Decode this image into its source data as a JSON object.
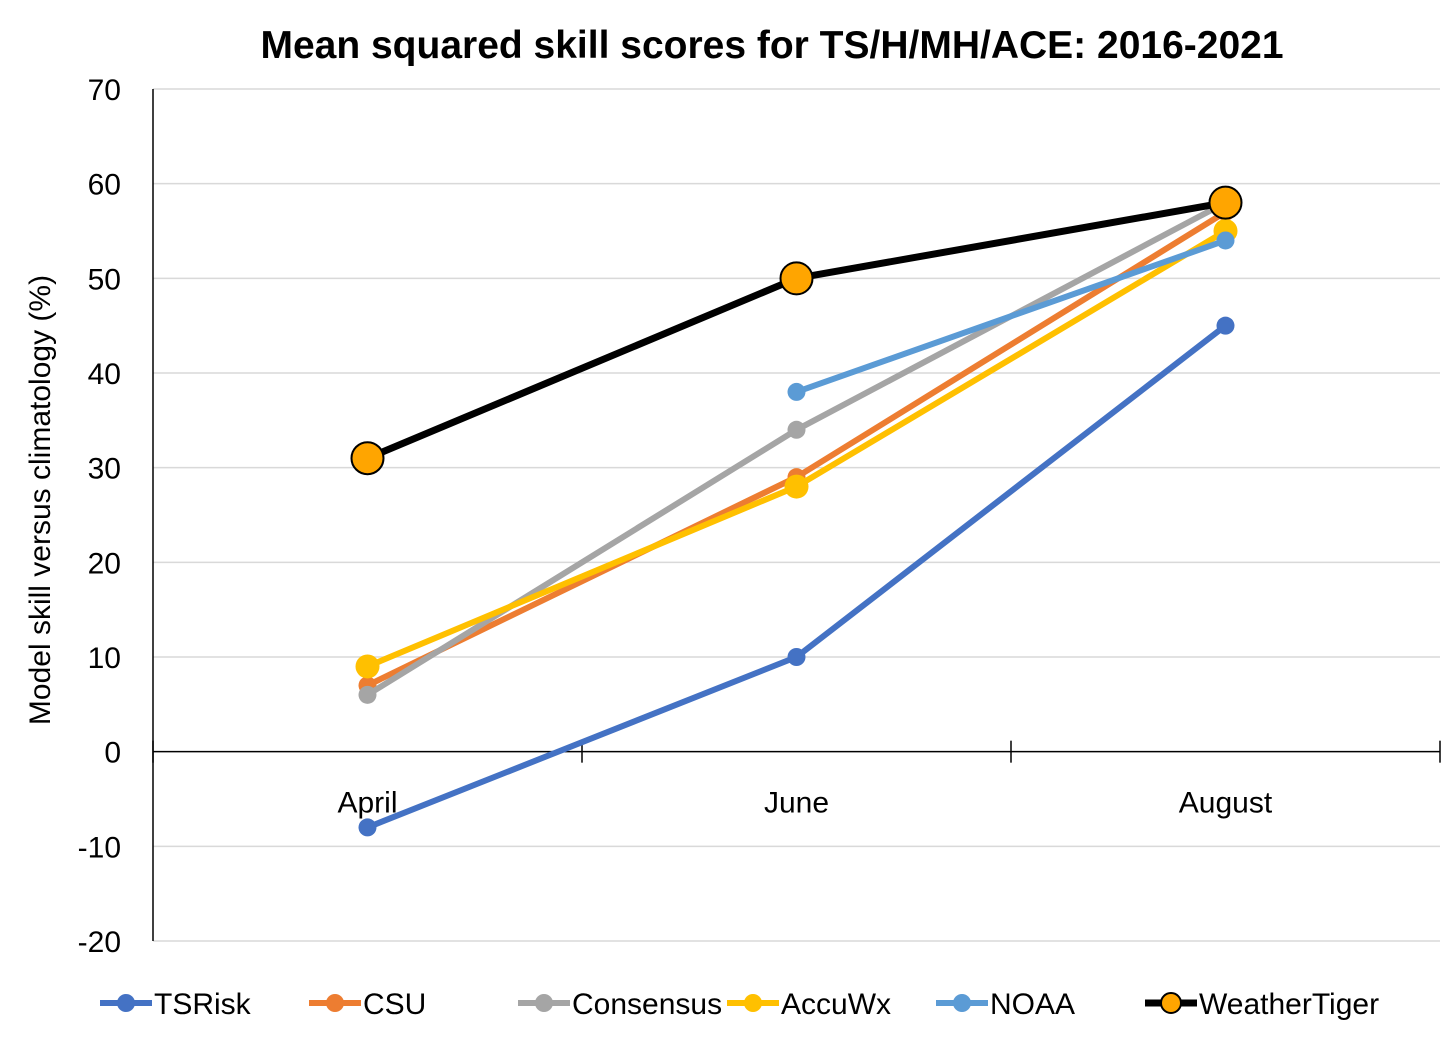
{
  "chart_data": {
    "type": "line",
    "title": "Mean squared skill scores for TS/H/MH/ACE: 2016-2021",
    "xlabel": "",
    "ylabel": "Model skill versus climatology (%)",
    "categories": [
      "April",
      "June",
      "August"
    ],
    "ylim": [
      -20,
      70
    ],
    "yticks": [
      -20,
      -10,
      0,
      10,
      20,
      30,
      40,
      50,
      60,
      70
    ],
    "grid": true,
    "legend_position": "bottom",
    "series": [
      {
        "name": "TSRisk",
        "values": [
          -8,
          10,
          45
        ],
        "color": "#4472c4",
        "marker": "circle"
      },
      {
        "name": "CSU",
        "values": [
          7,
          29,
          57
        ],
        "color": "#ed7d31",
        "marker": "circle"
      },
      {
        "name": "Consensus",
        "values": [
          6,
          34,
          58
        ],
        "color": "#a5a5a5",
        "marker": "circle"
      },
      {
        "name": "AccuWx",
        "values": [
          9,
          28,
          55
        ],
        "color": "#ffc000",
        "marker": "circle"
      },
      {
        "name": "NOAA",
        "values": [
          null,
          38,
          54
        ],
        "color": "#5b9bd5",
        "marker": "circle"
      },
      {
        "name": "WeatherTiger",
        "values": [
          31,
          50,
          58
        ],
        "color": "#000000",
        "marker": "circle",
        "marker_fill": "#ffa500",
        "marker_stroke": "#000000"
      }
    ]
  }
}
